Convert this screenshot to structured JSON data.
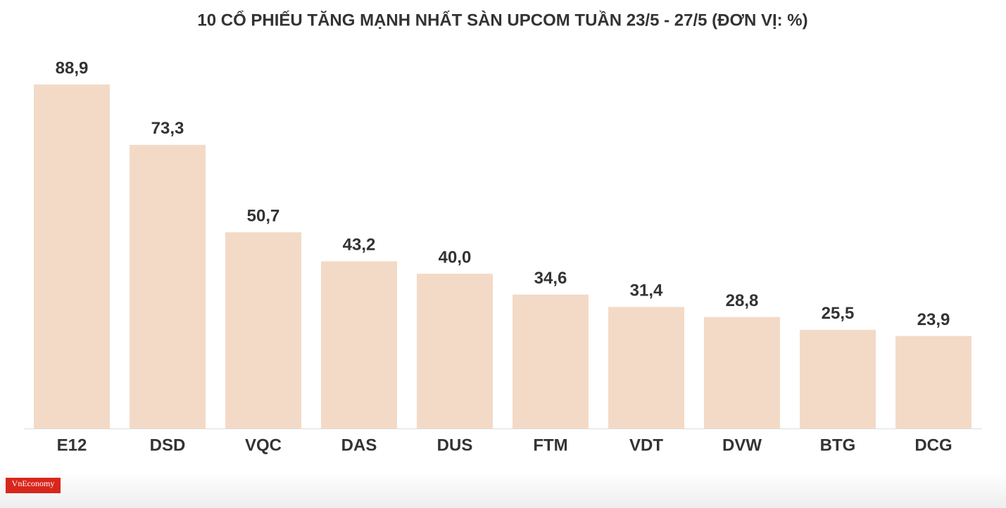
{
  "chart_data": {
    "type": "bar",
    "title": "10 CỔ PHIẾU TĂNG MẠNH NHẤT SÀN UPCOM TUẦN 23/5 - 27/5 (ĐƠN VỊ: %)",
    "categories": [
      "E12",
      "DSD",
      "VQC",
      "DAS",
      "DUS",
      "FTM",
      "VDT",
      "DVW",
      "BTG",
      "DCG"
    ],
    "values": [
      88.9,
      73.3,
      50.7,
      43.2,
      40.0,
      34.6,
      31.4,
      28.8,
      25.5,
      23.9
    ],
    "value_labels": [
      "88,9",
      "73,3",
      "50,7",
      "43,2",
      "40,0",
      "34,6",
      "31,4",
      "28,8",
      "25,5",
      "23,9"
    ],
    "color": "#f3dac7"
  },
  "logo": {
    "text": "VnEconomy"
  }
}
